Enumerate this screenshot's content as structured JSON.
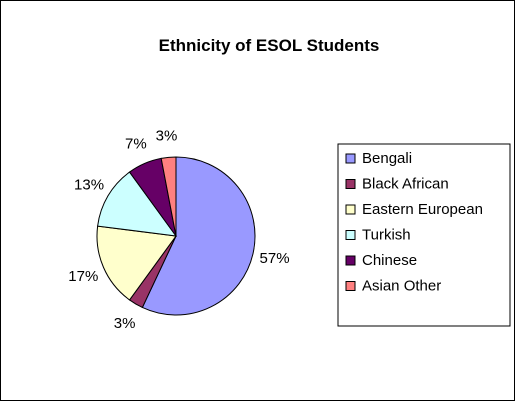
{
  "chart_data": {
    "type": "pie",
    "title": "Ethnicity of ESOL Students",
    "categories": [
      "Bengali",
      "Black African",
      "Eastern European",
      "Turkish",
      "Chinese",
      "Asian Other"
    ],
    "values": [
      57,
      3,
      17,
      13,
      7,
      3
    ],
    "data_labels": [
      "57%",
      "3%",
      "17%",
      "13%",
      "7%",
      "3%"
    ],
    "colors": [
      "#9999ff",
      "#993366",
      "#ffffcc",
      "#ccffff",
      "#660066",
      "#ff8080"
    ],
    "legend_position": "right",
    "start_angle": "12 o'clock, clockwise"
  }
}
